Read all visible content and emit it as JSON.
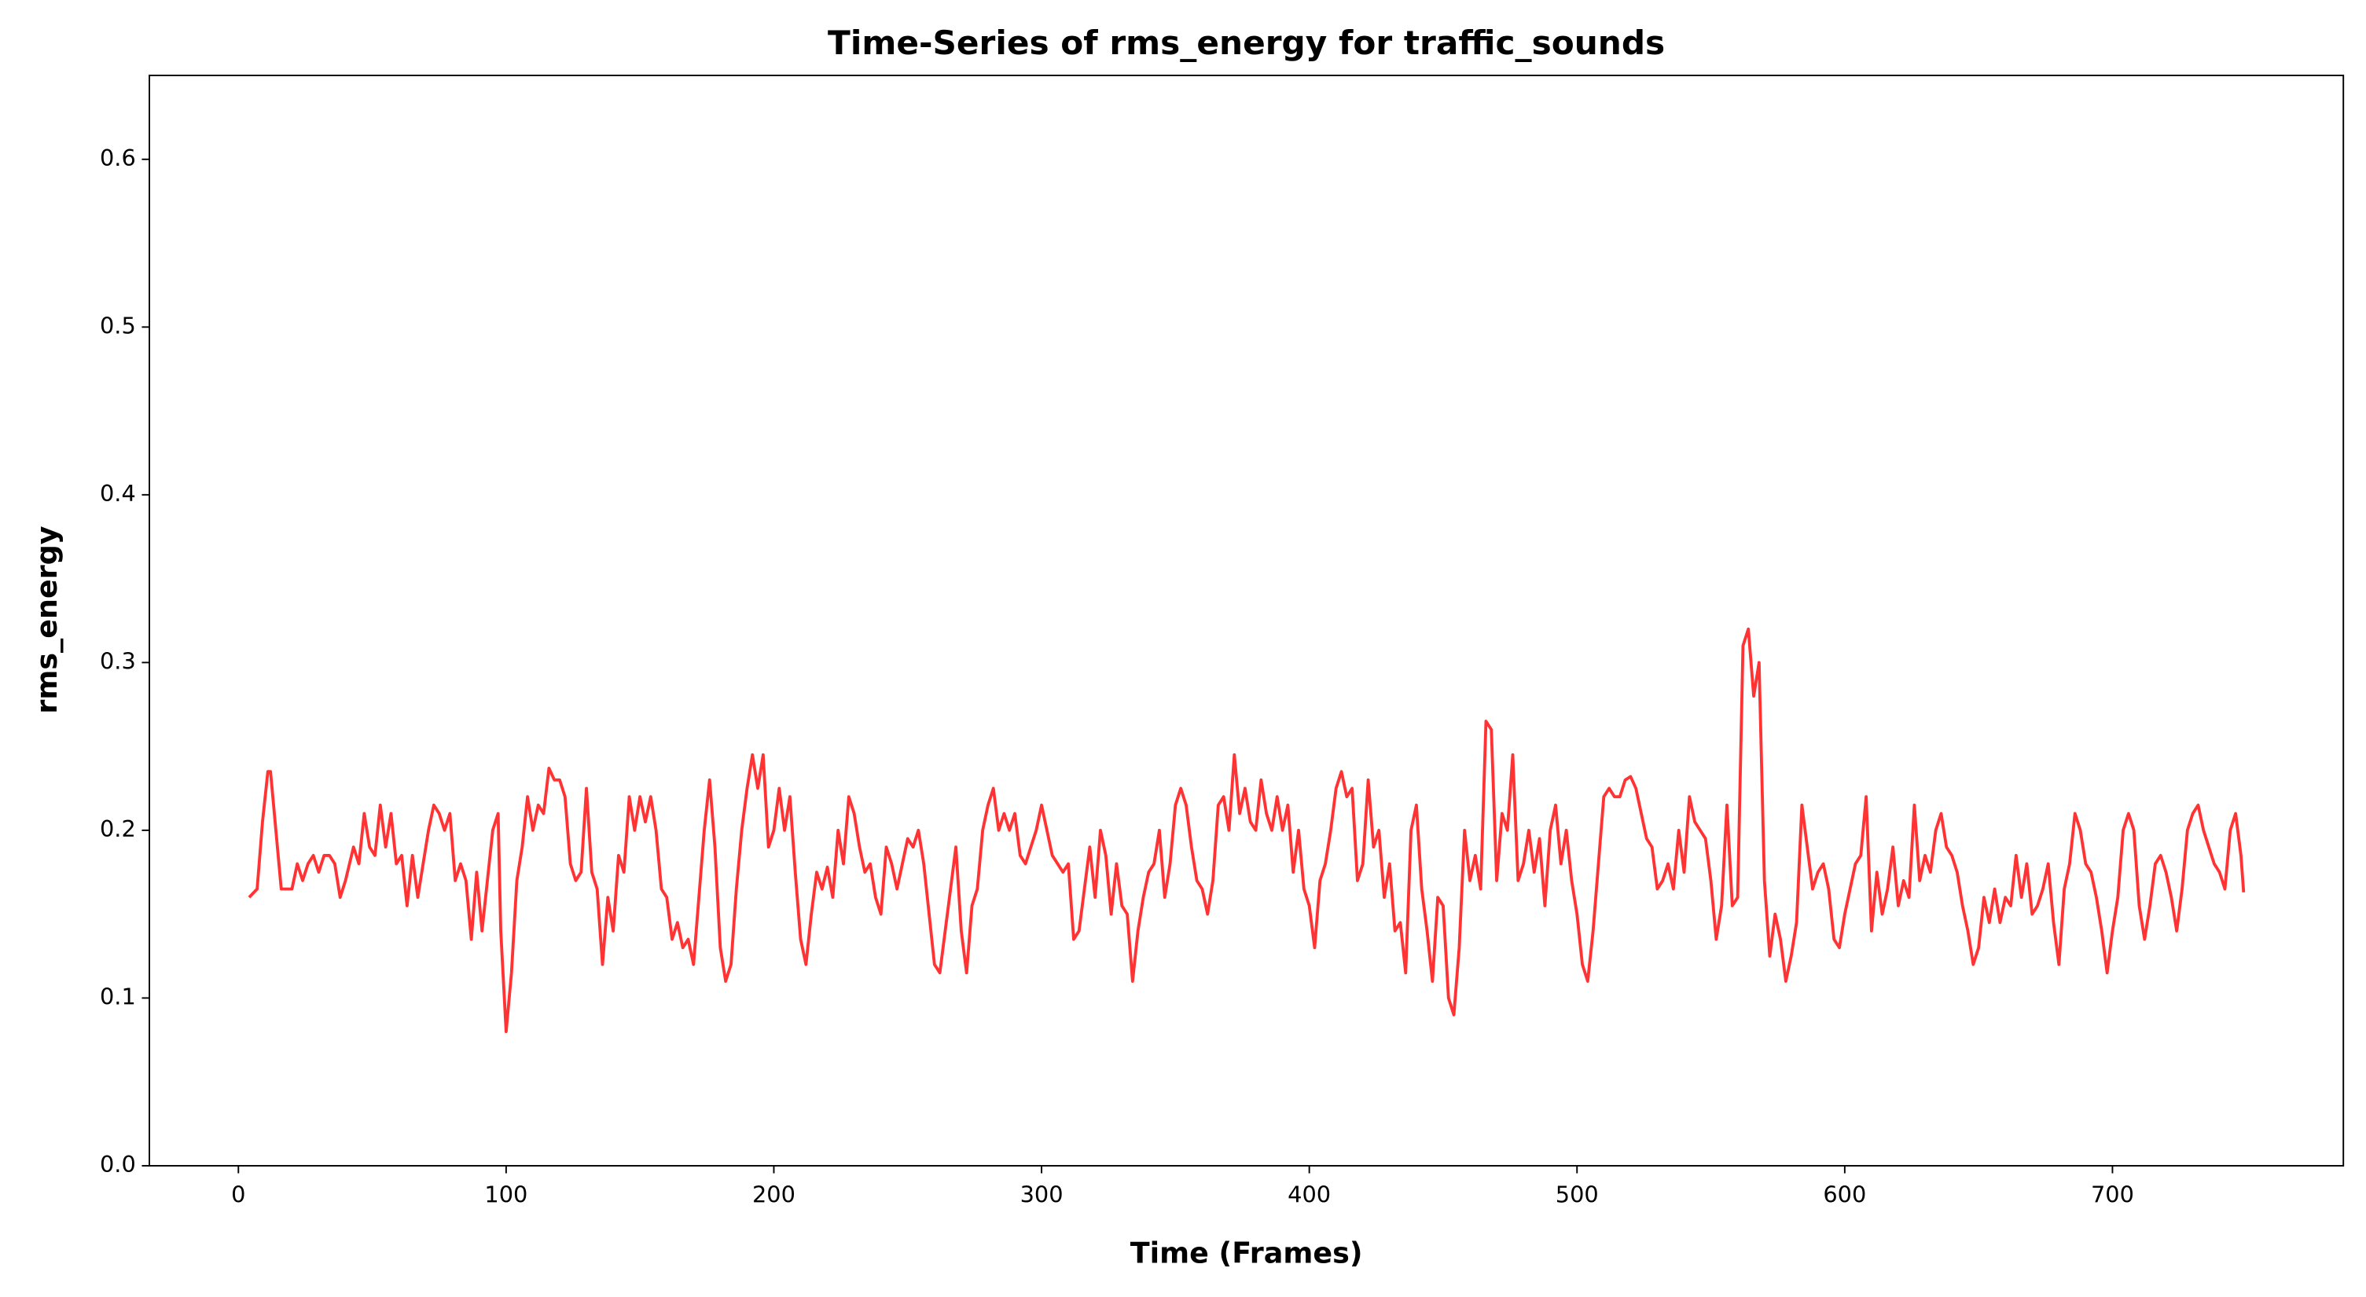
{
  "chart_data": {
    "type": "line",
    "title": "Time-Series of rms_energy for traffic_sounds",
    "x_label": "Time (Frames)",
    "y_label": "rms_energy",
    "xlim": [
      -33.25,
      786.25
    ],
    "ylim": [
      0,
      0.65
    ],
    "xticks": [
      0,
      100,
      200,
      300,
      400,
      500,
      600,
      700
    ],
    "yticks": [
      {
        "value": 0,
        "label": "0.0"
      },
      0.1,
      0.2,
      0.3,
      0.4,
      0.5,
      0.6
    ],
    "grid": false,
    "series": [
      {
        "color": "#ff3333",
        "x": [
          4,
          7,
          9,
          11,
          12,
          14,
          16,
          18,
          20,
          22,
          24,
          26,
          28,
          30,
          32,
          34,
          36,
          38,
          40,
          43,
          45,
          47,
          49,
          51,
          53,
          55,
          57,
          59,
          61,
          63,
          65,
          67,
          69,
          71,
          73,
          75,
          77,
          79,
          81,
          83,
          85,
          87,
          89,
          91,
          93,
          95,
          97,
          98,
          100,
          102,
          104,
          106,
          108,
          110,
          112,
          114,
          116,
          118,
          120,
          122,
          124,
          126,
          128,
          130,
          132,
          134,
          136,
          138,
          140,
          142,
          144,
          146,
          148,
          150,
          152,
          154,
          156,
          158,
          160,
          162,
          164,
          166,
          168,
          170,
          172,
          174,
          176,
          178,
          180,
          182,
          184,
          186,
          188,
          190,
          192,
          194,
          196,
          198,
          200,
          202,
          204,
          206,
          208,
          210,
          212,
          214,
          216,
          218,
          220,
          222,
          224,
          226,
          228,
          230,
          232,
          234,
          236,
          238,
          240,
          242,
          244,
          246,
          248,
          250,
          252,
          254,
          256,
          258,
          260,
          262,
          264,
          266,
          268,
          270,
          272,
          274,
          276,
          278,
          280,
          282,
          284,
          286,
          288,
          290,
          292,
          294,
          296,
          298,
          300,
          302,
          304,
          306,
          308,
          310,
          312,
          314,
          316,
          318,
          320,
          322,
          324,
          326,
          328,
          330,
          332,
          334,
          336,
          338,
          340,
          342,
          344,
          346,
          348,
          350,
          352,
          354,
          356,
          358,
          360,
          362,
          364,
          366,
          368,
          370,
          372,
          374,
          376,
          378,
          380,
          382,
          384,
          386,
          388,
          390,
          392,
          394,
          396,
          398,
          400,
          402,
          404,
          406,
          408,
          410,
          412,
          414,
          416,
          418,
          420,
          422,
          424,
          426,
          428,
          430,
          432,
          434,
          436,
          438,
          440,
          442,
          444,
          446,
          448,
          450,
          452,
          454,
          456,
          458,
          460,
          462,
          464,
          466,
          468,
          470,
          472,
          474,
          476,
          478,
          480,
          482,
          484,
          486,
          488,
          490,
          492,
          494,
          496,
          498,
          500,
          502,
          504,
          506,
          508,
          510,
          512,
          514,
          516,
          518,
          520,
          522,
          524,
          526,
          528,
          530,
          532,
          534,
          536,
          538,
          540,
          542,
          544,
          546,
          548,
          550,
          552,
          554,
          556,
          558,
          560,
          562,
          564,
          566,
          568,
          570,
          572,
          574,
          576,
          578,
          580,
          582,
          584,
          586,
          588,
          590,
          592,
          594,
          596,
          598,
          600,
          602,
          604,
          606,
          608,
          610,
          612,
          614,
          616,
          618,
          620,
          622,
          624,
          626,
          628,
          630,
          632,
          634,
          636,
          638,
          640,
          642,
          644,
          646,
          648,
          650,
          652,
          654,
          656,
          658,
          660,
          662,
          664,
          666,
          668,
          670,
          672,
          674,
          676,
          678,
          680,
          682,
          684,
          686,
          688,
          690,
          692,
          694,
          696,
          698,
          700,
          702,
          704,
          706,
          708,
          710,
          712,
          714,
          716,
          718,
          720,
          722,
          724,
          726,
          728,
          730,
          732,
          734,
          736,
          738,
          740,
          742,
          744,
          746,
          748,
          749
        ],
        "values": [
          0.16,
          0.165,
          0.205,
          0.235,
          0.235,
          0.2,
          0.165,
          0.165,
          0.165,
          0.18,
          0.17,
          0.18,
          0.185,
          0.175,
          0.185,
          0.185,
          0.18,
          0.16,
          0.17,
          0.19,
          0.18,
          0.21,
          0.19,
          0.185,
          0.215,
          0.19,
          0.21,
          0.18,
          0.185,
          0.155,
          0.185,
          0.16,
          0.18,
          0.2,
          0.215,
          0.21,
          0.2,
          0.21,
          0.17,
          0.18,
          0.17,
          0.135,
          0.175,
          0.14,
          0.17,
          0.2,
          0.21,
          0.14,
          0.08,
          0.115,
          0.17,
          0.19,
          0.22,
          0.2,
          0.215,
          0.21,
          0.237,
          0.23,
          0.23,
          0.22,
          0.18,
          0.17,
          0.175,
          0.225,
          0.175,
          0.165,
          0.12,
          0.16,
          0.14,
          0.185,
          0.175,
          0.22,
          0.2,
          0.22,
          0.205,
          0.22,
          0.2,
          0.165,
          0.16,
          0.135,
          0.145,
          0.13,
          0.135,
          0.12,
          0.16,
          0.2,
          0.23,
          0.19,
          0.13,
          0.11,
          0.12,
          0.165,
          0.2,
          0.225,
          0.245,
          0.225,
          0.245,
          0.19,
          0.2,
          0.225,
          0.2,
          0.22,
          0.175,
          0.135,
          0.12,
          0.15,
          0.175,
          0.165,
          0.178,
          0.16,
          0.2,
          0.18,
          0.22,
          0.21,
          0.19,
          0.175,
          0.18,
          0.16,
          0.15,
          0.19,
          0.18,
          0.165,
          0.18,
          0.195,
          0.19,
          0.2,
          0.18,
          0.15,
          0.12,
          0.115,
          0.14,
          0.165,
          0.19,
          0.14,
          0.115,
          0.155,
          0.165,
          0.2,
          0.215,
          0.225,
          0.2,
          0.21,
          0.2,
          0.21,
          0.185,
          0.18,
          0.19,
          0.2,
          0.215,
          0.2,
          0.185,
          0.18,
          0.175,
          0.18,
          0.135,
          0.14,
          0.165,
          0.19,
          0.16,
          0.2,
          0.185,
          0.15,
          0.18,
          0.155,
          0.15,
          0.11,
          0.14,
          0.16,
          0.175,
          0.18,
          0.2,
          0.16,
          0.18,
          0.215,
          0.225,
          0.215,
          0.19,
          0.17,
          0.165,
          0.15,
          0.17,
          0.215,
          0.22,
          0.2,
          0.245,
          0.21,
          0.225,
          0.205,
          0.2,
          0.23,
          0.21,
          0.2,
          0.22,
          0.2,
          0.215,
          0.175,
          0.2,
          0.165,
          0.155,
          0.13,
          0.17,
          0.18,
          0.2,
          0.225,
          0.235,
          0.22,
          0.225,
          0.17,
          0.18,
          0.23,
          0.19,
          0.2,
          0.16,
          0.18,
          0.14,
          0.145,
          0.115,
          0.2,
          0.215,
          0.165,
          0.14,
          0.11,
          0.16,
          0.155,
          0.1,
          0.09,
          0.13,
          0.2,
          0.17,
          0.185,
          0.165,
          0.265,
          0.26,
          0.17,
          0.21,
          0.2,
          0.245,
          0.17,
          0.18,
          0.2,
          0.175,
          0.195,
          0.155,
          0.2,
          0.215,
          0.18,
          0.2,
          0.17,
          0.15,
          0.12,
          0.11,
          0.14,
          0.18,
          0.22,
          0.225,
          0.22,
          0.22,
          0.23,
          0.232,
          0.225,
          0.21,
          0.195,
          0.19,
          0.165,
          0.17,
          0.18,
          0.165,
          0.2,
          0.175,
          0.22,
          0.205,
          0.2,
          0.195,
          0.17,
          0.135,
          0.155,
          0.215,
          0.155,
          0.16,
          0.31,
          0.32,
          0.28,
          0.3,
          0.17,
          0.125,
          0.15,
          0.135,
          0.11,
          0.125,
          0.145,
          0.215,
          0.19,
          0.165,
          0.175,
          0.18,
          0.165,
          0.135,
          0.13,
          0.15,
          0.165,
          0.18,
          0.185,
          0.22,
          0.14,
          0.175,
          0.15,
          0.165,
          0.19,
          0.155,
          0.17,
          0.16,
          0.215,
          0.17,
          0.185,
          0.175,
          0.2,
          0.21,
          0.19,
          0.185,
          0.175,
          0.155,
          0.14,
          0.12,
          0.13,
          0.16,
          0.145,
          0.165,
          0.145,
          0.16,
          0.155,
          0.185,
          0.16,
          0.18,
          0.15,
          0.155,
          0.165,
          0.18,
          0.145,
          0.12,
          0.165,
          0.18,
          0.21,
          0.2,
          0.18,
          0.175,
          0.16,
          0.14,
          0.115,
          0.14,
          0.16,
          0.2,
          0.21,
          0.2,
          0.155,
          0.135,
          0.155,
          0.18,
          0.185,
          0.175,
          0.16,
          0.14,
          0.165,
          0.2,
          0.21,
          0.215,
          0.2,
          0.19,
          0.18,
          0.175,
          0.165,
          0.2,
          0.21,
          0.185,
          0.163
        ]
      }
    ]
  }
}
